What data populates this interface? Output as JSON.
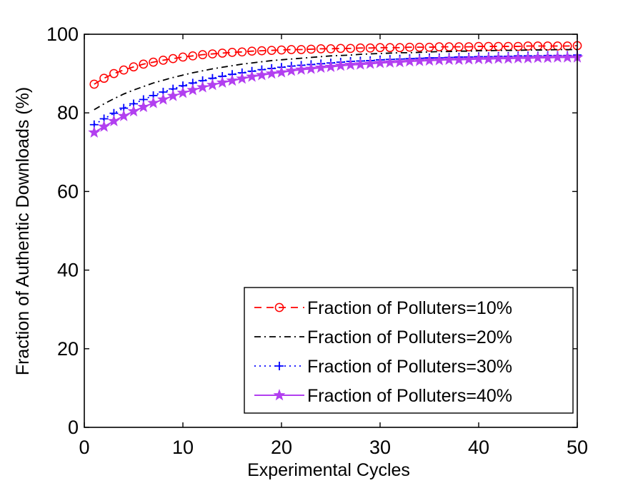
{
  "chart_data": {
    "type": "line",
    "title": "",
    "xlabel": "Experimental Cycles",
    "ylabel": "Fraction of Authentic Downloads (%)",
    "xlim": [
      0,
      50
    ],
    "ylim": [
      0,
      100
    ],
    "xticks": [
      "0",
      "10",
      "20",
      "30",
      "40",
      "50"
    ],
    "yticks": [
      "0",
      "20",
      "40",
      "60",
      "80",
      "100"
    ],
    "grid": false,
    "legend_position": "bottom-right",
    "x": [
      1,
      2,
      3,
      4,
      5,
      6,
      7,
      8,
      9,
      10,
      11,
      12,
      13,
      14,
      15,
      16,
      17,
      18,
      19,
      20,
      21,
      22,
      23,
      24,
      25,
      26,
      27,
      28,
      29,
      30,
      31,
      32,
      33,
      34,
      35,
      36,
      37,
      38,
      39,
      40,
      41,
      42,
      43,
      44,
      45,
      46,
      47,
      48,
      49,
      50
    ],
    "series": [
      {
        "name": "Fraction of Polluters=10%",
        "color": "#ff0000",
        "line_style": "dashed",
        "marker": "circle",
        "values": [
          87.3,
          88.8,
          90.0,
          90.9,
          91.7,
          92.4,
          92.9,
          93.4,
          93.8,
          94.2,
          94.5,
          94.8,
          95.0,
          95.2,
          95.4,
          95.5,
          95.7,
          95.8,
          95.9,
          96.0,
          96.1,
          96.1,
          96.2,
          96.3,
          96.3,
          96.4,
          96.4,
          96.5,
          96.5,
          96.6,
          96.6,
          96.6,
          96.7,
          96.7,
          96.7,
          96.8,
          96.8,
          96.8,
          96.8,
          96.9,
          96.9,
          96.9,
          96.9,
          96.9,
          97.0,
          97.0,
          97.0,
          97.0,
          97.0,
          97.1
        ]
      },
      {
        "name": "Fraction of Polluters=20%",
        "color": "#000000",
        "line_style": "dash-dot",
        "marker": "none",
        "values": [
          80.8,
          82.3,
          83.6,
          84.8,
          85.8,
          86.7,
          87.6,
          88.3,
          89.0,
          89.6,
          90.2,
          90.7,
          91.2,
          91.6,
          92.0,
          92.4,
          92.7,
          93.0,
          93.3,
          93.5,
          93.7,
          93.9,
          94.1,
          94.3,
          94.5,
          94.6,
          94.7,
          94.9,
          95.0,
          95.1,
          95.2,
          95.3,
          95.3,
          95.4,
          95.5,
          95.6,
          95.6,
          95.7,
          95.7,
          95.8,
          95.8,
          95.9,
          95.9,
          95.9,
          96.0,
          96.0,
          96.0,
          96.1,
          96.1,
          96.1
        ]
      },
      {
        "name": "Fraction of Polluters=30%",
        "color": "#0000ff",
        "line_style": "dotted",
        "marker": "plus",
        "values": [
          77.0,
          78.5,
          79.9,
          81.2,
          82.3,
          83.4,
          84.4,
          85.3,
          86.1,
          86.9,
          87.6,
          88.2,
          88.8,
          89.3,
          89.8,
          90.2,
          90.6,
          91.0,
          91.3,
          91.6,
          91.9,
          92.1,
          92.3,
          92.5,
          92.7,
          92.9,
          93.1,
          93.2,
          93.3,
          93.5,
          93.6,
          93.7,
          93.8,
          93.9,
          94.0,
          94.0,
          94.1,
          94.2,
          94.2,
          94.3,
          94.3,
          94.4,
          94.4,
          94.5,
          94.5,
          94.5,
          94.6,
          94.6,
          94.6,
          94.7
        ]
      },
      {
        "name": "Fraction of Polluters=40%",
        "color": "#b23ff0",
        "line_style": "solid",
        "marker": "star",
        "values": [
          75.0,
          76.5,
          77.9,
          79.2,
          80.4,
          81.5,
          82.5,
          83.4,
          84.3,
          85.1,
          85.8,
          86.5,
          87.1,
          87.7,
          88.2,
          88.7,
          89.2,
          89.6,
          90.0,
          90.3,
          90.7,
          91.0,
          91.2,
          91.5,
          91.7,
          92.0,
          92.2,
          92.3,
          92.5,
          92.7,
          92.8,
          92.9,
          93.1,
          93.2,
          93.3,
          93.4,
          93.5,
          93.5,
          93.6,
          93.7,
          93.7,
          93.8,
          93.8,
          93.9,
          93.9,
          94.0,
          94.0,
          94.1,
          94.1,
          94.1
        ]
      }
    ]
  }
}
